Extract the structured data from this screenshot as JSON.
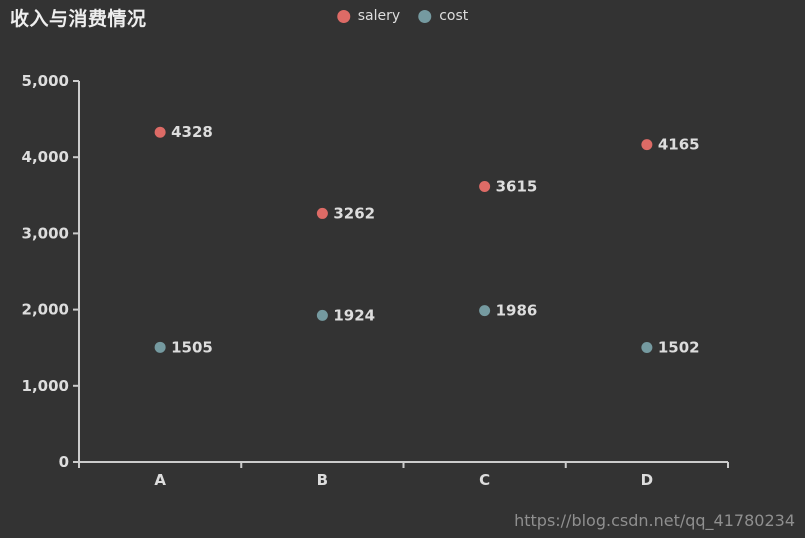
{
  "title": "收入与消费情况",
  "legend": {
    "items": [
      {
        "label": "salery",
        "color": "#dd6b66"
      },
      {
        "label": "cost",
        "color": "#759aa0"
      }
    ]
  },
  "watermark": "https://blog.csdn.net/qq_41780234",
  "colors": {
    "background": "#333333",
    "axis_line": "#cccccc",
    "axis_label": "#dddddd",
    "point_label": "#dddddd",
    "watermark": "#8f8f8f"
  },
  "chart_data": {
    "type": "scatter",
    "title": "收入与消费情况",
    "categories": [
      "A",
      "B",
      "C",
      "D"
    ],
    "series": [
      {
        "name": "salery",
        "color": "#dd6b66",
        "values": [
          4328,
          3262,
          3615,
          4165
        ]
      },
      {
        "name": "cost",
        "color": "#759aa0",
        "values": [
          1505,
          1924,
          1986,
          1502
        ]
      }
    ],
    "xlabel": "",
    "ylabel": "",
    "ylim": [
      0,
      5000
    ],
    "y_ticks": [
      0,
      1000,
      2000,
      3000,
      4000,
      5000
    ],
    "y_tick_labels": [
      "0",
      "1,000",
      "2,000",
      "3,000",
      "4,000",
      "5,000"
    ],
    "grid": false,
    "legend_position": "top-center",
    "point_labels_visible": true
  }
}
